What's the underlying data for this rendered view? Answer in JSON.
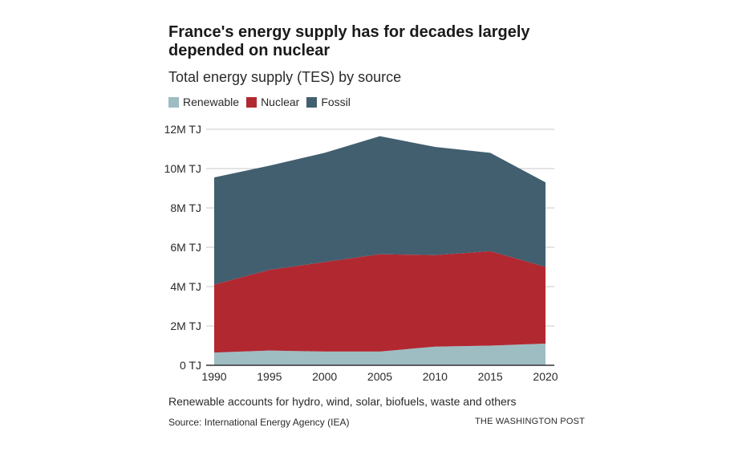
{
  "header": {
    "title": "France's energy supply has for decades largely depended on nuclear",
    "subtitle": "Total energy supply (TES) by source"
  },
  "legend": [
    {
      "label": "Renewable",
      "color": "#9dbdc3"
    },
    {
      "label": "Nuclear",
      "color": "#b22830"
    },
    {
      "label": "Fossil",
      "color": "#425f70"
    }
  ],
  "chart_data": {
    "type": "area",
    "stacked": true,
    "x": [
      1990,
      1995,
      2000,
      2005,
      2010,
      2015,
      2020
    ],
    "series": [
      {
        "name": "Renewable",
        "color": "#9dbdc3",
        "values": [
          0.65,
          0.75,
          0.7,
          0.7,
          0.95,
          1.0,
          1.1
        ]
      },
      {
        "name": "Nuclear",
        "color": "#b22830",
        "values": [
          3.45,
          4.1,
          4.55,
          4.95,
          4.65,
          4.8,
          3.9
        ]
      },
      {
        "name": "Fossil",
        "color": "#425f70",
        "values": [
          5.45,
          5.3,
          5.55,
          6.0,
          5.5,
          5.0,
          4.3
        ]
      }
    ],
    "unit": "M TJ",
    "ylim": [
      0,
      12
    ],
    "y_ticks": [
      0,
      2,
      4,
      6,
      8,
      10,
      12
    ],
    "y_tick_labels": [
      "0 TJ",
      "2M TJ",
      "4M TJ",
      "6M TJ",
      "8M TJ",
      "10M TJ",
      "12M TJ"
    ],
    "x_tick_labels": [
      "1990",
      "1995",
      "2000",
      "2005",
      "2010",
      "2015",
      "2020"
    ],
    "grid": true,
    "legend_position": "top-left"
  },
  "footer": {
    "note": "Renewable accounts for hydro, wind, solar, biofuels, waste and others",
    "source": "Source: International Energy Agency (IEA)",
    "credit": "THE WASHINGTON POST"
  }
}
